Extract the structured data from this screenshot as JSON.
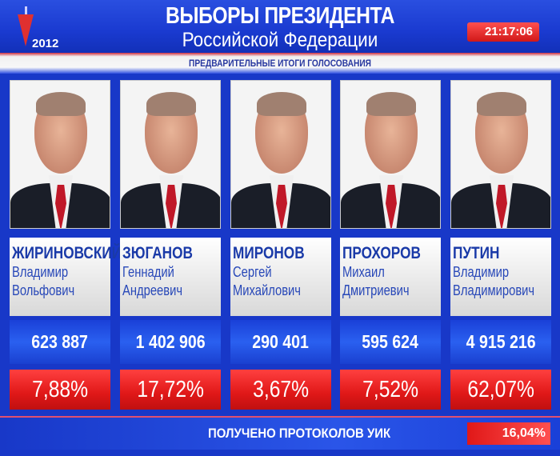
{
  "header": {
    "title": "ВЫБОРЫ ПРЕЗИДЕНТА",
    "subtitle": "Российской Федерации",
    "year": "2012",
    "clock": "21:17:06"
  },
  "strip": "ПРЕДВАРИТЕЛЬНЫЕ ИТОГИ ГОЛОСОВАНИЯ",
  "colors": {
    "background": "#1838c8",
    "percent_red": "#e01818",
    "name_text": "#1a3aa8"
  },
  "candidates": [
    {
      "last": "ЖИРИНОВСКИЙ",
      "first": "Владимир",
      "patronymic": "Вольфович",
      "votes": "623 887",
      "percent": "7,88%"
    },
    {
      "last": "ЗЮГАНОВ",
      "first": "Геннадий",
      "patronymic": "Андреевич",
      "votes": "1 402 906",
      "percent": "17,72%"
    },
    {
      "last": "МИРОНОВ",
      "first": "Сергей",
      "patronymic": "Михайлович",
      "votes": "290 401",
      "percent": "3,67%"
    },
    {
      "last": "ПРОХОРОВ",
      "first": "Михаил",
      "patronymic": "Дмитриевич",
      "votes": "595 624",
      "percent": "7,52%"
    },
    {
      "last": "ПУТИН",
      "first": "Владимир",
      "patronymic": "Владимирович",
      "votes": "4 915 216",
      "percent": "62,07%"
    }
  ],
  "footer": {
    "label": "ПОЛУЧЕНО ПРОТОКОЛОВ УИК",
    "value": "16,04%"
  }
}
